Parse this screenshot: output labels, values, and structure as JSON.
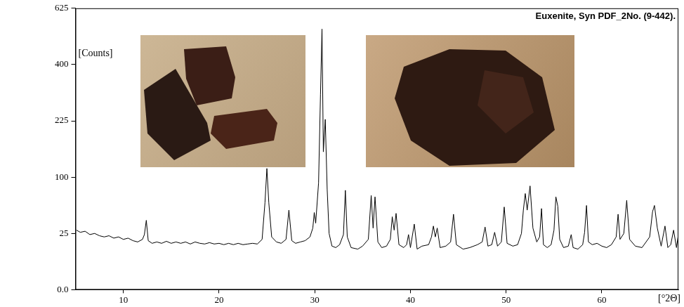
{
  "chart_data": {
    "type": "line",
    "title": "Euxenite, Syn PDF_2No. (9-442).",
    "y_label": "[Counts]",
    "x_label": "[°2Θ]",
    "color": "#000000",
    "grid": false,
    "xlim": [
      5,
      68
    ],
    "xticks": [
      10,
      20,
      30,
      40,
      50,
      60
    ],
    "ylim": [
      0,
      625
    ],
    "yticks": [
      {
        "value": 0,
        "label": "0.0"
      },
      25,
      100,
      225,
      400,
      625
    ],
    "x": [
      5.1,
      5.5,
      6.0,
      6.5,
      7.0,
      7.5,
      8.0,
      8.5,
      9.0,
      9.5,
      10.0,
      10.5,
      11.0,
      11.5,
      12.0,
      12.2,
      12.4,
      12.6,
      13.0,
      13.5,
      14.0,
      14.5,
      15.0,
      15.5,
      16.0,
      16.5,
      17.0,
      17.5,
      18.0,
      18.5,
      19.0,
      19.5,
      20.0,
      20.5,
      21.0,
      21.5,
      22.0,
      22.5,
      23.0,
      23.5,
      24.0,
      24.5,
      24.8,
      25.0,
      25.2,
      25.5,
      26.0,
      26.5,
      27.0,
      27.3,
      27.6,
      28.0,
      28.5,
      29.0,
      29.5,
      29.8,
      29.95,
      30.1,
      30.4,
      30.6,
      30.76,
      30.9,
      31.1,
      31.3,
      31.5,
      31.8,
      32.2,
      32.6,
      33.0,
      33.2,
      33.4,
      33.8,
      34.5,
      35.0,
      35.6,
      35.9,
      36.1,
      36.3,
      36.6,
      37.0,
      37.5,
      37.9,
      38.1,
      38.3,
      38.5,
      38.8,
      39.3,
      39.6,
      39.8,
      40.0,
      40.4,
      40.7,
      41.2,
      41.9,
      42.2,
      42.4,
      42.6,
      42.8,
      43.1,
      43.7,
      44.2,
      44.5,
      44.8,
      45.5,
      46.2,
      47.0,
      47.5,
      47.8,
      48.1,
      48.5,
      48.8,
      49.1,
      49.5,
      49.8,
      50.1,
      50.7,
      51.2,
      51.6,
      51.8,
      52.0,
      52.2,
      52.5,
      52.8,
      53.2,
      53.5,
      53.7,
      53.9,
      54.3,
      54.7,
      55.0,
      55.2,
      55.4,
      55.6,
      56.0,
      56.5,
      56.8,
      57.0,
      57.5,
      58.0,
      58.2,
      58.4,
      58.6,
      59.0,
      59.5,
      60.0,
      60.5,
      61.0,
      61.5,
      61.7,
      61.9,
      62.3,
      62.6,
      62.9,
      63.5,
      64.2,
      65.0,
      65.3,
      65.5,
      65.8,
      66.2,
      66.6,
      66.9,
      67.2,
      67.5,
      67.8,
      68.0
    ],
    "values": [
      28,
      26,
      27,
      24,
      25,
      23,
      22,
      23,
      21,
      22,
      20,
      21,
      19,
      18,
      20,
      24,
      38,
      19,
      17,
      18,
      17,
      18.5,
      17,
      18,
      17,
      18,
      16.5,
      18,
      17,
      16.5,
      17.5,
      16.5,
      17,
      16,
      17,
      16,
      17,
      16,
      16.5,
      17,
      16.5,
      20,
      60,
      116,
      60,
      22,
      18,
      17,
      20,
      50,
      19,
      17,
      18,
      19,
      22,
      30,
      47,
      35,
      90,
      300,
      536,
      150,
      229,
      80,
      25,
      15,
      14,
      16,
      24,
      78,
      22,
      14,
      13,
      15,
      20,
      70,
      30,
      68,
      18,
      14,
      15,
      20,
      42,
      28,
      46,
      16,
      14,
      16,
      24,
      14,
      34,
      13,
      15,
      16,
      22,
      32,
      22,
      30,
      14,
      15,
      18,
      45,
      16,
      13,
      14,
      16,
      18,
      31,
      15,
      16,
      26,
      15,
      18,
      54,
      17,
      15,
      16,
      25,
      50,
      73,
      50,
      85,
      30,
      18,
      22,
      52,
      16,
      14,
      16,
      28,
      68,
      55,
      20,
      14,
      15,
      24,
      14,
      13,
      16,
      26,
      56,
      18,
      16,
      17,
      15,
      14,
      16,
      22,
      45,
      20,
      25,
      63,
      20,
      15,
      14,
      22,
      48,
      56,
      30,
      15,
      32,
      14,
      16,
      28,
      14,
      24
    ]
  }
}
